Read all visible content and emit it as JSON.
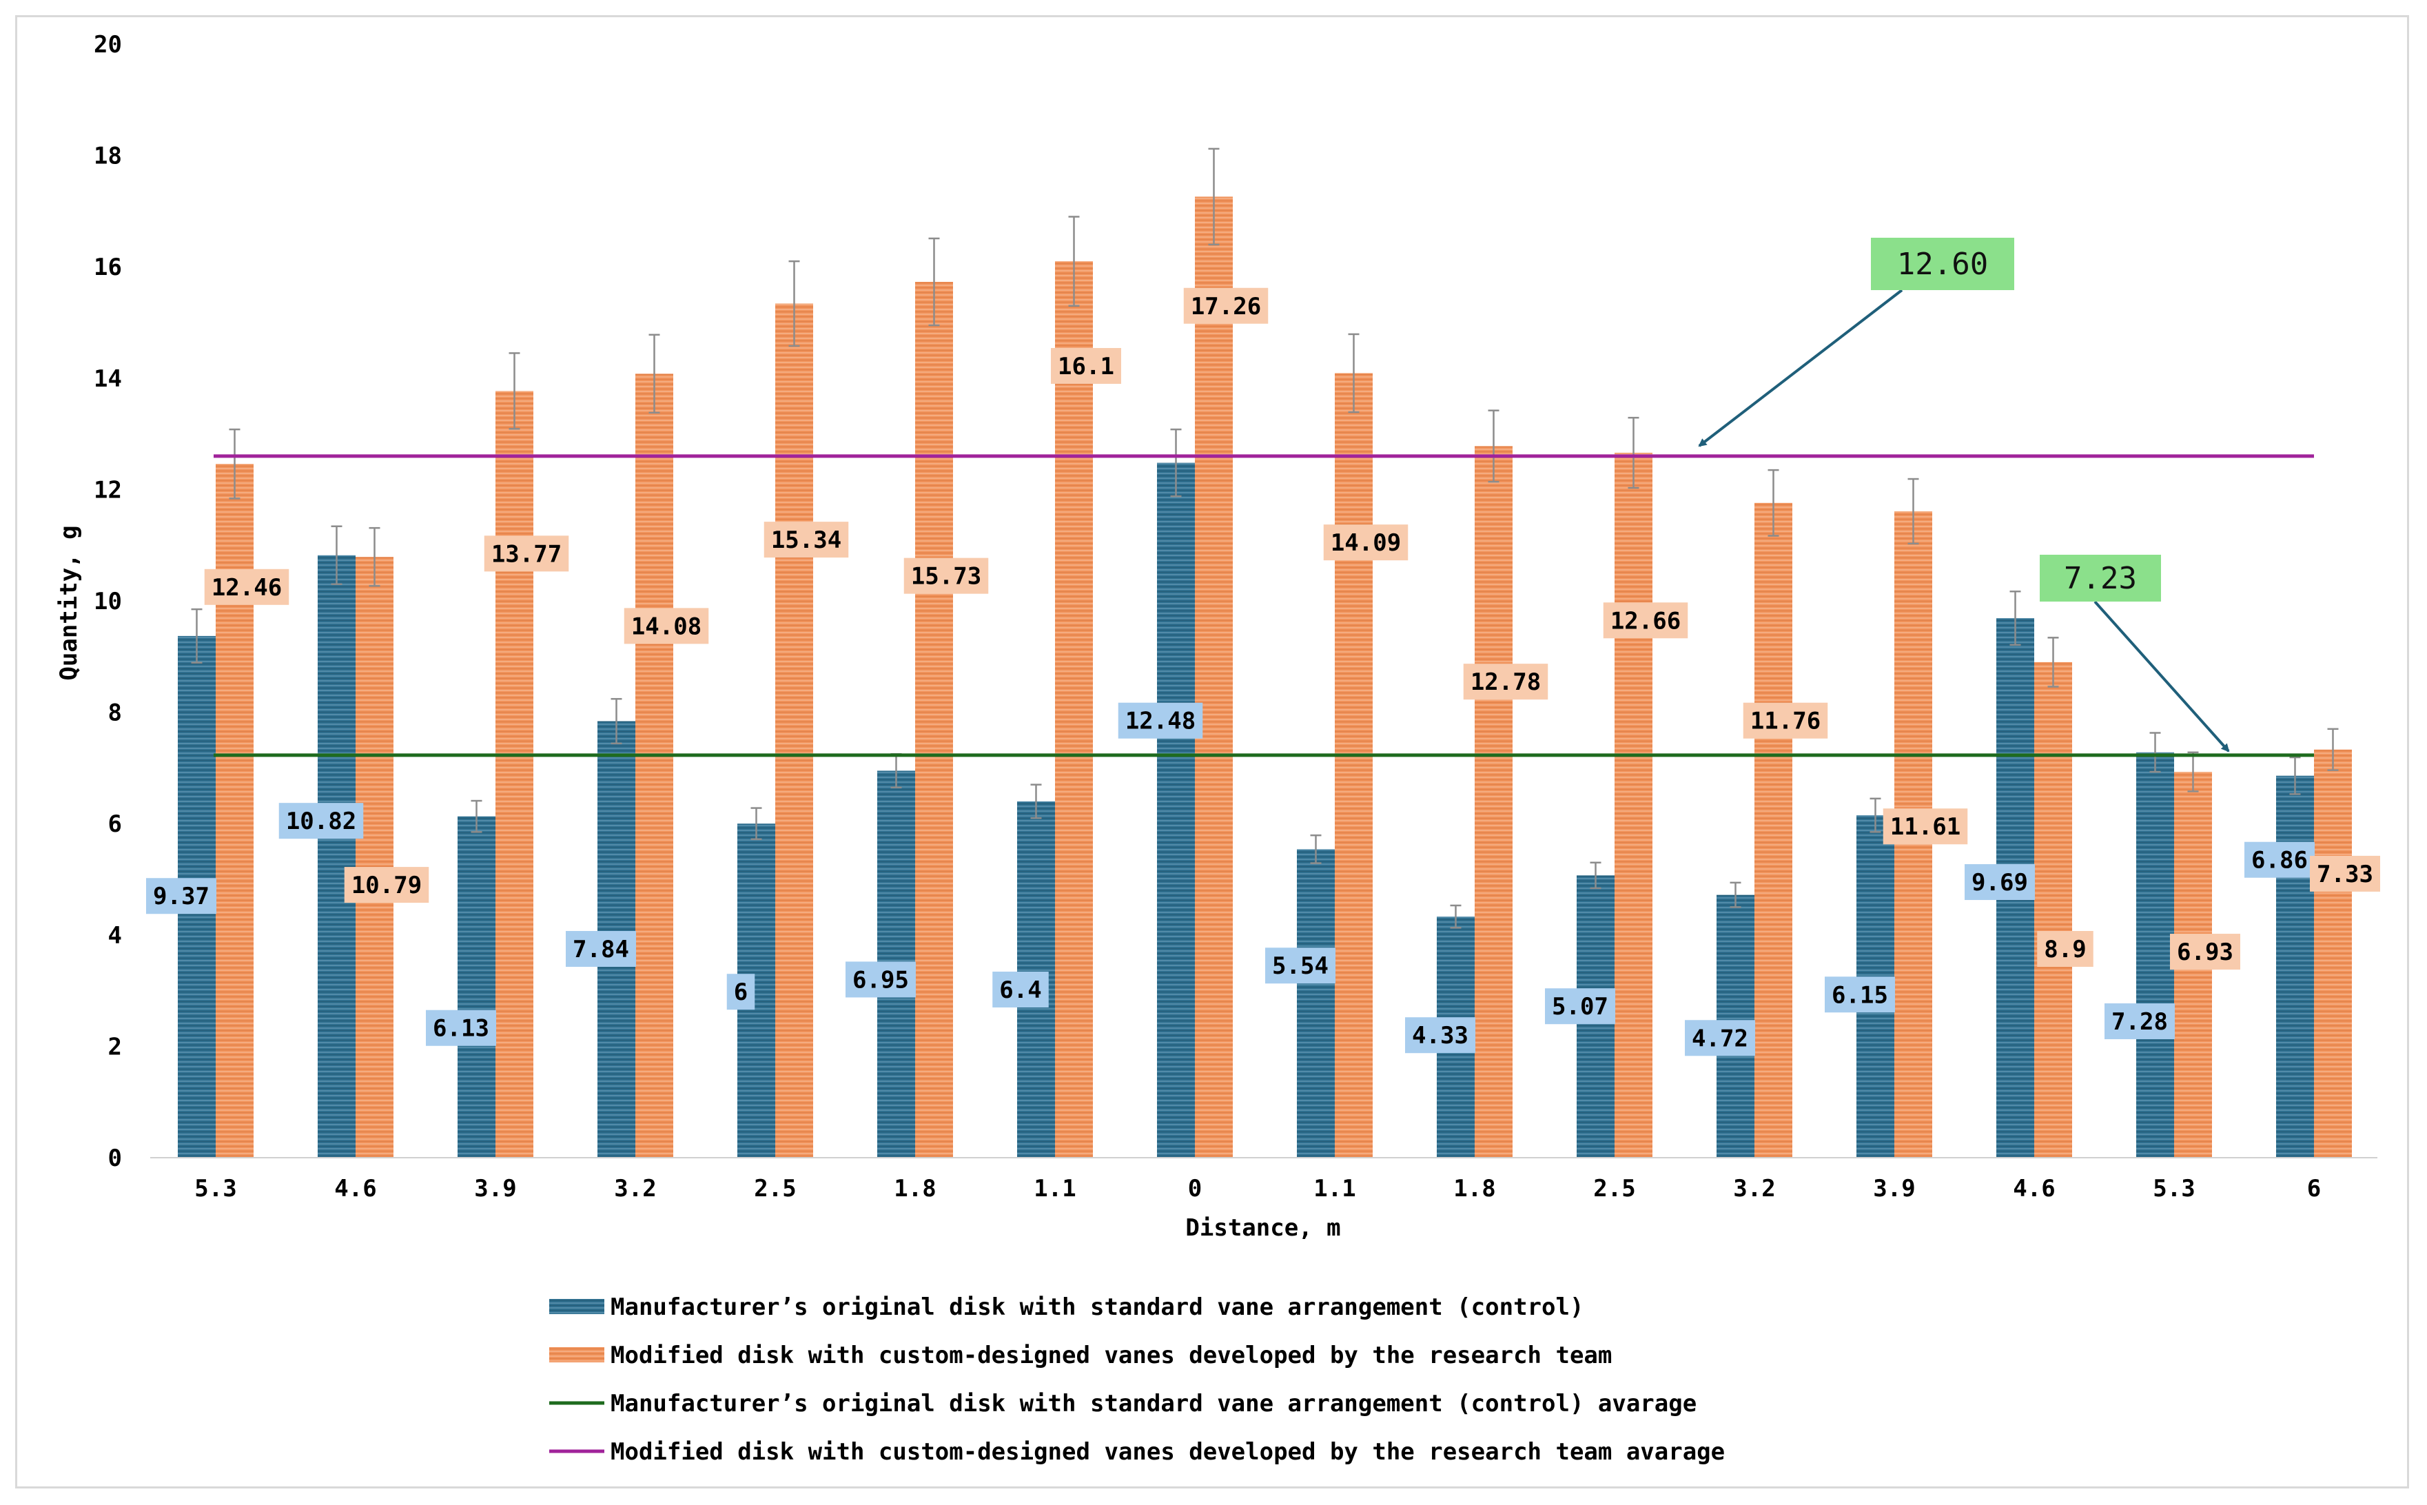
{
  "chart_data": {
    "type": "bar",
    "title": "",
    "xlabel": "Distance, m",
    "ylabel": "Quantity, g",
    "ylim": [
      0,
      20
    ],
    "yticks": [
      "0",
      "2",
      "4",
      "6",
      "8",
      "10",
      "12",
      "14",
      "16",
      "18",
      "20"
    ],
    "grid": false,
    "legend_position": "bottom",
    "categories": [
      "5.3",
      "4.6",
      "3.9",
      "3.2",
      "2.5",
      "1.8",
      "1.1",
      "0",
      "1.1",
      "1.8",
      "2.5",
      "3.2",
      "3.9",
      "4.6",
      "5.3",
      "6"
    ],
    "series": [
      {
        "name": "Manufacturer’s original disk with standard vane arrangement (control)",
        "color": "#2e6e8e",
        "label_bg": "#a8cdee",
        "values": [
          9.37,
          10.82,
          6.13,
          7.84,
          6,
          6.95,
          6.4,
          12.48,
          5.54,
          4.33,
          5.07,
          4.72,
          6.15,
          9.69,
          7.28,
          6.86
        ],
        "labels": [
          "9.37",
          "10.82",
          "6.13",
          "7.84",
          "6",
          "6.95",
          "6.4",
          "12.48",
          "5.54",
          "4.33",
          "5.07",
          "4.72",
          "6.15",
          "9.69",
          "7.28",
          "6.86"
        ],
        "errors": [
          0.48,
          0.52,
          0.28,
          0.4,
          0.28,
          0.3,
          0.3,
          0.6,
          0.25,
          0.2,
          0.23,
          0.22,
          0.3,
          0.48,
          0.35,
          0.33
        ],
        "label_y": [
          4.7,
          6.05,
          2.33,
          3.75,
          2.98,
          3.2,
          3.02,
          7.85,
          3.45,
          2.2,
          2.72,
          2.15,
          2.93,
          4.95,
          2.45,
          5.35
        ]
      },
      {
        "name": "Modified disk with custom-designed vanes developed by the research team",
        "color": "#f0925a",
        "label_bg": "#f8cbad",
        "values": [
          12.46,
          10.79,
          13.77,
          14.08,
          15.34,
          15.73,
          16.1,
          17.26,
          14.09,
          12.78,
          12.66,
          11.76,
          11.61,
          8.9,
          6.93,
          7.33
        ],
        "labels": [
          "12.46",
          "10.79",
          "13.77",
          "14.08",
          "15.34",
          "15.73",
          "16.1",
          "17.26",
          "14.09",
          "12.78",
          "12.66",
          "11.76",
          "11.61",
          "8.9",
          "6.93",
          "7.33"
        ],
        "errors": [
          0.62,
          0.52,
          0.68,
          0.7,
          0.76,
          0.78,
          0.8,
          0.86,
          0.7,
          0.64,
          0.63,
          0.59,
          0.58,
          0.44,
          0.35,
          0.37
        ],
        "label_y": [
          10.25,
          4.9,
          10.85,
          9.55,
          11.1,
          10.45,
          14.22,
          15.3,
          11.05,
          8.55,
          9.65,
          7.85,
          5.95,
          3.75,
          3.7,
          5.1
        ]
      }
    ],
    "averages": [
      {
        "name": "Manufacturer’s original disk with standard vane arrangement (control) avarage",
        "value": 7.23,
        "color": "#1e6b1e",
        "callout": "7.23"
      },
      {
        "name": "Modified disk with custom-designed vanes developed by the research team avarage",
        "value": 12.6,
        "color": "#a0239a",
        "callout": "12.60"
      }
    ],
    "callout_style": {
      "background": "#8be08b",
      "arrow_color": "#1f5f7a"
    }
  }
}
